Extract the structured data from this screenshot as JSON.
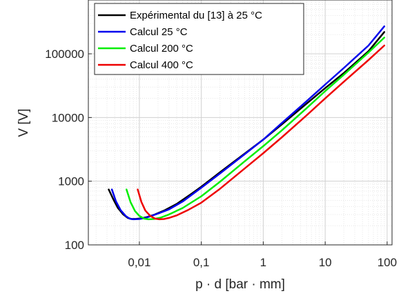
{
  "chart_data": {
    "type": "line",
    "xlabel": "p · d [bar · mm]",
    "ylabel": "V [V]",
    "xscale": "log",
    "yscale": "log",
    "xlim": [
      0.0015,
      120
    ],
    "ylim": [
      100,
      700000
    ],
    "grid": "on",
    "legend_position": "top-left",
    "x_ticks": [
      {
        "value": 0.01,
        "label": "0,01"
      },
      {
        "value": 0.1,
        "label": "0,1"
      },
      {
        "value": 1,
        "label": "1"
      },
      {
        "value": 10,
        "label": "10"
      },
      {
        "value": 100,
        "label": "100"
      }
    ],
    "y_ticks": [
      {
        "value": 100,
        "label": "100"
      },
      {
        "value": 1000,
        "label": "1000"
      },
      {
        "value": 10000,
        "label": "10000"
      },
      {
        "value": 100000,
        "label": "100000"
      }
    ],
    "series": [
      {
        "name": "Expérimental du [13] à 25 °C",
        "color": "#000000",
        "points": [
          [
            0.0032,
            740
          ],
          [
            0.0038,
            520
          ],
          [
            0.0045,
            380
          ],
          [
            0.0055,
            300
          ],
          [
            0.0065,
            265
          ],
          [
            0.0075,
            255
          ],
          [
            0.009,
            256
          ],
          [
            0.011,
            262
          ],
          [
            0.013,
            272
          ],
          [
            0.017,
            295
          ],
          [
            0.025,
            345
          ],
          [
            0.04,
            440
          ],
          [
            0.07,
            640
          ],
          [
            0.1,
            820
          ],
          [
            0.2,
            1380
          ],
          [
            0.5,
            2700
          ],
          [
            1,
            4500
          ],
          [
            2,
            7800
          ],
          [
            5,
            16500
          ],
          [
            10,
            29000
          ],
          [
            20,
            50000
          ],
          [
            50,
            110000
          ],
          [
            90,
            220000
          ]
        ]
      },
      {
        "name": "Calcul 25 °C",
        "color": "#0000ee",
        "points": [
          [
            0.0036,
            740
          ],
          [
            0.0042,
            480
          ],
          [
            0.005,
            350
          ],
          [
            0.006,
            285
          ],
          [
            0.007,
            258
          ],
          [
            0.008,
            252
          ],
          [
            0.01,
            255
          ],
          [
            0.013,
            268
          ],
          [
            0.02,
            310
          ],
          [
            0.03,
            360
          ],
          [
            0.05,
            480
          ],
          [
            0.1,
            790
          ],
          [
            0.2,
            1320
          ],
          [
            0.5,
            2650
          ],
          [
            1,
            4500
          ],
          [
            2,
            8200
          ],
          [
            5,
            18000
          ],
          [
            10,
            33000
          ],
          [
            20,
            60000
          ],
          [
            50,
            135000
          ],
          [
            90,
            270000
          ]
        ]
      },
      {
        "name": "Calcul 200 °C",
        "color": "#00ee00",
        "points": [
          [
            0.0062,
            740
          ],
          [
            0.0072,
            470
          ],
          [
            0.0085,
            340
          ],
          [
            0.01,
            285
          ],
          [
            0.012,
            258
          ],
          [
            0.014,
            252
          ],
          [
            0.017,
            255
          ],
          [
            0.022,
            268
          ],
          [
            0.03,
            300
          ],
          [
            0.05,
            380
          ],
          [
            0.1,
            580
          ],
          [
            0.2,
            980
          ],
          [
            0.5,
            2050
          ],
          [
            1,
            3550
          ],
          [
            2,
            6300
          ],
          [
            5,
            14000
          ],
          [
            10,
            26000
          ],
          [
            20,
            47000
          ],
          [
            50,
            105000
          ],
          [
            90,
            180000
          ]
        ]
      },
      {
        "name": "Calcul 400 °C",
        "color": "#ee0000",
        "points": [
          [
            0.0094,
            740
          ],
          [
            0.0108,
            470
          ],
          [
            0.0125,
            345
          ],
          [
            0.015,
            285
          ],
          [
            0.018,
            258
          ],
          [
            0.021,
            252
          ],
          [
            0.025,
            255
          ],
          [
            0.03,
            265
          ],
          [
            0.04,
            290
          ],
          [
            0.06,
            350
          ],
          [
            0.1,
            460
          ],
          [
            0.2,
            760
          ],
          [
            0.5,
            1580
          ],
          [
            1,
            2750
          ],
          [
            2,
            4900
          ],
          [
            5,
            10800
          ],
          [
            10,
            20000
          ],
          [
            20,
            36500
          ],
          [
            50,
            80000
          ],
          [
            90,
            135000
          ]
        ]
      }
    ]
  }
}
